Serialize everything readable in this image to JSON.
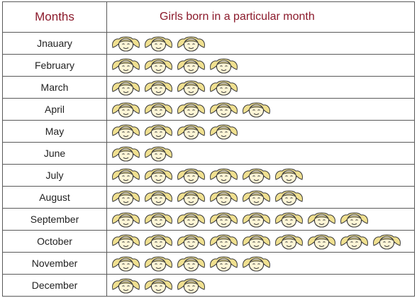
{
  "chart_data": {
    "type": "table",
    "column_headers": [
      "Months",
      "Girls born in a particular month"
    ],
    "months": [
      "Jnauary",
      "February",
      "March",
      "April",
      "May",
      "June",
      "July",
      "August",
      "September",
      "October",
      "November",
      "December"
    ],
    "values": [
      3,
      4,
      4,
      5,
      4,
      2,
      6,
      6,
      8,
      9,
      5,
      3
    ],
    "symbol": "girl-face-icon",
    "colors": {
      "header_text": "#8b1a2b",
      "face_fill": "#fdf5d6",
      "hair_fill": "#f0e090",
      "outline": "#3a3a3a",
      "border": "#5a5a5a"
    }
  }
}
